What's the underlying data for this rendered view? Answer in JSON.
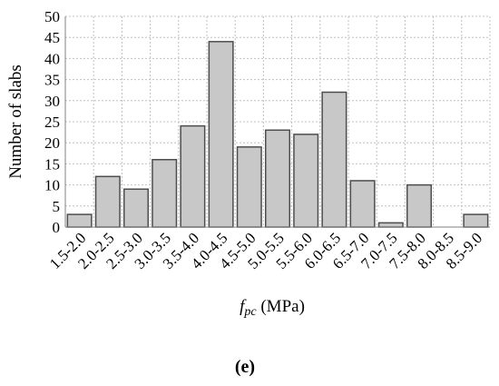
{
  "chart_data": {
    "type": "bar",
    "categories": [
      "1.5-2.0",
      "2.0-2.5",
      "2.5-3.0",
      "3.0-3.5",
      "3.5-4.0",
      "4.0-4.5",
      "4.5-5.0",
      "5.0-5.5",
      "5.5-6.0",
      "6.0-6.5",
      "6.5-7.0",
      "7.0-7.5",
      "7.5-8.0",
      "8.0-8.5",
      "8.5-9.0"
    ],
    "values": [
      3,
      12,
      9,
      16,
      24,
      44,
      19,
      23,
      22,
      32,
      11,
      1,
      10,
      0,
      3
    ],
    "ylabel": "Number of slabs",
    "xlabel_main": "f",
    "xlabel_sub": "pc",
    "xlabel_unit": " (MPa)",
    "ylim": [
      0,
      50
    ],
    "yticks": [
      "0",
      "5",
      "10",
      "15",
      "20",
      "25",
      "30",
      "35",
      "40",
      "45",
      "50"
    ],
    "grid": true,
    "bar_color": "#c8c8c8",
    "bar_edge_color": "#4d4d4d",
    "grid_color": "#c0c0c0"
  },
  "panel_label": "(e)"
}
